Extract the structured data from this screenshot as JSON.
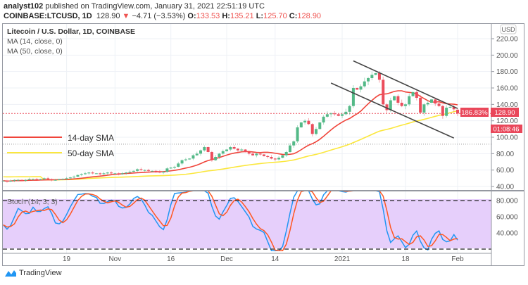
{
  "header": {
    "author": "analyst102",
    "published_text": "published on TradingView.com, January 31, 2021 22:51:19 UTC",
    "symbol": "COINBASE:LTCUSD, 1D",
    "last": "128.90",
    "change": "−4.71 (−3.53%)",
    "o_label": "O:",
    "o": "133.53",
    "h_label": "H:",
    "h": "135.21",
    "l_label": "L:",
    "l": "125.70",
    "c_label": "C:",
    "c": "128.90"
  },
  "legend": {
    "title": "Litecoin / U.S. Dollar, 1D, COINBASE",
    "ma14": "MA (14, close, 0)",
    "ma50": "MA (50, close, 0)",
    "stoch": "Stoch (14, 3, 3)"
  },
  "annotations": {
    "sma14": "14-day SMA",
    "sma50": "50-day SMA"
  },
  "badges": {
    "currency": "USD",
    "percent": "186.83%",
    "price": "128.90",
    "countdown": "01:08:46"
  },
  "footer": {
    "brand": "TradingView"
  },
  "colors": {
    "up": "#53b987",
    "down": "#eb4d5c",
    "ma14": "#f0443a",
    "ma50": "#fbe73d",
    "stoch_k": "#2196f3",
    "stoch_d": "#ff5722",
    "stoch_band": "#e1c6fa",
    "badge": "#e9475a"
  },
  "chart_data": [
    {
      "type": "candlestick",
      "title": "Litecoin / U.S. Dollar, 1D, COINBASE",
      "start_date": "2020-10-02",
      "closes": [
        47,
        46,
        47,
        48,
        48,
        47,
        48,
        49,
        49,
        48,
        49,
        50,
        49,
        48,
        48,
        49,
        49,
        50,
        51,
        52,
        54,
        55,
        56,
        57,
        56,
        56,
        55,
        56,
        57,
        56,
        56,
        55,
        56,
        57,
        58,
        59,
        61,
        60,
        60,
        59,
        59,
        58,
        57,
        58,
        62,
        63,
        64,
        68,
        72,
        73,
        74,
        78,
        80,
        84,
        88,
        82,
        72,
        76,
        80,
        83,
        85,
        88,
        86,
        84,
        85,
        82,
        80,
        78,
        80,
        79,
        77,
        76,
        74,
        73,
        75,
        78,
        82,
        90,
        95,
        112,
        118,
        120,
        116,
        104,
        110,
        118,
        125,
        128,
        129,
        128,
        126,
        128,
        131,
        138,
        160,
        158,
        162,
        168,
        172,
        176,
        178,
        170,
        140,
        133,
        145,
        150,
        142,
        138,
        140,
        150,
        155,
        148,
        130,
        140,
        142,
        146,
        141,
        138,
        126,
        136,
        137,
        134,
        128.9
      ],
      "last_bar": {
        "open": 133.53,
        "high": 135.21,
        "low": 125.7,
        "close": 128.9
      },
      "ylim": [
        40,
        225
      ],
      "y_ticks": [
        "40.00",
        "60.00",
        "80.00",
        "100.00",
        "120.00",
        "140.00",
        "160.00",
        "180.00",
        "200.00",
        "220.00"
      ],
      "x_ticks": [
        {
          "label": "19",
          "date": "2020-10-19"
        },
        {
          "label": "Nov",
          "date": "2020-11-01"
        },
        {
          "label": "16",
          "date": "2020-11-16"
        },
        {
          "label": "Dec",
          "date": "2020-12-01"
        },
        {
          "label": "14",
          "date": "2020-12-14"
        },
        {
          "label": "2021",
          "date": "2021-01-01"
        },
        {
          "label": "18",
          "date": "2021-01-18"
        },
        {
          "label": "Feb",
          "date": "2021-02-01"
        }
      ],
      "moving_averages": [
        {
          "name": "MA (14, close, 0)",
          "period": 14
        },
        {
          "name": "MA (50, close, 0)",
          "period": 50
        }
      ],
      "trendlines": [
        {
          "from": {
            "date": "2021-01-04",
            "price": 193
          },
          "to": {
            "date": "2021-02-01",
            "price": 135
          }
        },
        {
          "from": {
            "date": "2020-12-29",
            "price": 166
          },
          "to": {
            "date": "2021-01-31",
            "price": 99
          }
        }
      ],
      "horizontal_lines": [
        {
          "price": 128.9,
          "style": "dotted-red"
        },
        {
          "price": 91.5,
          "style": "dotted-gray"
        }
      ]
    },
    {
      "type": "line",
      "title": "Stoch (14, 3, 3)",
      "ylim": [
        18,
        93
      ],
      "y_ticks": [
        "40.000",
        "60.000",
        "80.000"
      ],
      "bands": [
        20,
        80
      ]
    }
  ]
}
